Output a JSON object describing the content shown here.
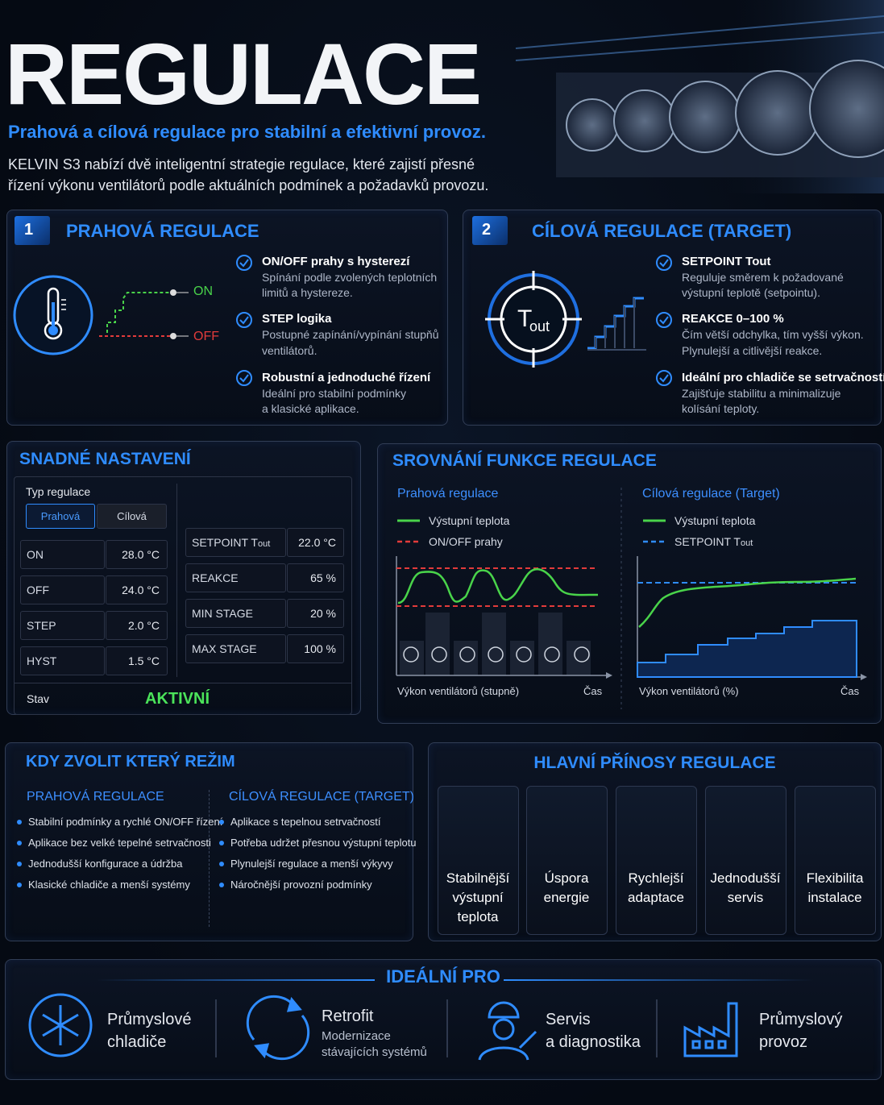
{
  "header": {
    "title": "REGULACE",
    "subtitle": "Prahová a cílová regulace pro stabilní a efektivní provoz.",
    "intro": [
      "KELVIN S3 nabízí dvě inteligentní strategie regulace, které zajistí přesné",
      "řízení výkonu ventilátorů podle aktuálních podmínek a požadavků provozu."
    ]
  },
  "threshold": {
    "number": "1",
    "title": "PRAHOVÁ REGULACE",
    "on": "ON",
    "off": "OFF",
    "items": [
      {
        "title": "ON/OFF prahy s hysterezí",
        "text": [
          "Spínání podle zvolených teplotních",
          "limitů a hystereze."
        ]
      },
      {
        "title": "STEP logika",
        "text": [
          "Postupné zapínání/vypínání stupňů",
          "ventilátorů."
        ]
      },
      {
        "title": "Robustní a jednoduché řízení",
        "text": [
          "Ideální pro stabilní podmínky",
          "a klasické aplikace."
        ]
      }
    ]
  },
  "target": {
    "number": "2",
    "title": "CÍLOVÁ REGULACE (TARGET)",
    "icon": "T",
    "icon_sub": "out",
    "items": [
      {
        "title": "SETPOINT Tout",
        "text": [
          "Reguluje směrem k požadované",
          "výstupní teplotě (setpointu)."
        ]
      },
      {
        "title": "REAKCE 0–100 %",
        "text": [
          "Čím větší odchylka, tím vyšší výkon.",
          "Plynulejší a citlivější reakce."
        ]
      },
      {
        "title": "Ideální pro chladiče se setrvačností",
        "text": [
          "Zajišťuje stabilitu a minimalizuje",
          "kolísání teploty."
        ]
      }
    ]
  },
  "settings": {
    "title": "SNADNÉ NASTAVENÍ",
    "type_label": "Typ regulace",
    "tabs": [
      "Prahová",
      "Cílová"
    ],
    "left": [
      {
        "label": "ON",
        "value": "28.0 °C"
      },
      {
        "label": "OFF",
        "value": "24.0 °C"
      },
      {
        "label": "STEP",
        "value": "2.0 °C"
      },
      {
        "label": "HYST",
        "value": "1.5 °C"
      }
    ],
    "right": [
      {
        "label": "SETPOINT T",
        "sub": "out",
        "value": "22.0 °C"
      },
      {
        "label": "REAKCE",
        "value": "65 %"
      },
      {
        "label": "MIN STAGE",
        "value": "20 %"
      },
      {
        "label": "MAX STAGE",
        "value": "100 %"
      }
    ],
    "status_label": "Stav",
    "status": "AKTIVNÍ"
  },
  "comparison": {
    "title": "SROVNÁNÍ FUNKCE REGULACE",
    "panels": [
      {
        "title": "Prahová regulace",
        "legend": [
          "Výstupní teplota",
          "ON/OFF prahy"
        ],
        "x_label": "Výkon ventilátorů (stupně)",
        "x_end": "Čas"
      },
      {
        "title": "Cílová regulace (Target)",
        "legend": [
          "Výstupní teplota",
          "SETPOINT T"
        ],
        "legend_sub": "out",
        "x_label": "Výkon ventilátorů (%)",
        "x_end": "Čas"
      }
    ]
  },
  "when": {
    "title": "KDY ZVOLIT KTERÝ REŽIM",
    "columns": [
      {
        "title": "PRAHOVÁ REGULACE",
        "items": [
          "Stabilní podmínky a rychlé ON/OFF řízení",
          "Aplikace bez velké tepelné setrvačnosti",
          "Jednodušší konfigurace a údržba",
          "Klasické chladiče a menší systémy"
        ]
      },
      {
        "title": "CÍLOVÁ REGULACE (TARGET)",
        "items": [
          "Aplikace s tepelnou setrvačností",
          "Potřeba udržet přesnou výstupní teplotu",
          "Plynulejší regulace a menší výkyvy",
          "Náročnější provozní podmínky"
        ]
      }
    ]
  },
  "benefits": {
    "title": "HLAVNÍ PŘÍNOSY REGULACE",
    "items": [
      [
        "Stabilnější",
        "výstupní",
        "teplota"
      ],
      [
        "Úspora",
        "energie"
      ],
      [
        "Rychlejší",
        "adaptace"
      ],
      [
        "Jednodušší",
        "servis"
      ],
      [
        "Flexibilita",
        "instalace"
      ]
    ]
  },
  "ideal": {
    "title": "IDEÁLNÍ PRO",
    "items": [
      {
        "title": [
          "Průmyslové",
          "chladiče"
        ]
      },
      {
        "title": [
          "Retrofit"
        ],
        "text": [
          "Modernizace",
          "stávajících systémů"
        ]
      },
      {
        "title": [
          "Servis",
          "a diagnostika"
        ]
      },
      {
        "title": [
          "Průmyslový",
          "provoz"
        ]
      }
    ]
  }
}
